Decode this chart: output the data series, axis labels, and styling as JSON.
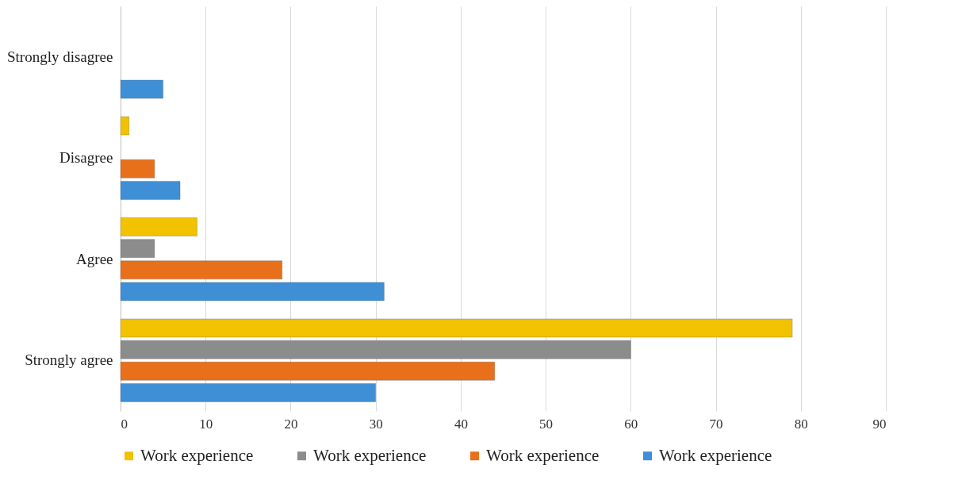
{
  "chart_data": {
    "type": "bar",
    "orientation": "horizontal",
    "categories": [
      "Strongly disagree",
      "Disagree",
      "Agree",
      "Strongly agree"
    ],
    "series": [
      {
        "name": "Work experience",
        "color": "#f2c200",
        "values": [
          null,
          1,
          9,
          79
        ]
      },
      {
        "name": "Work experience",
        "color": "#8c8c8c",
        "values": [
          null,
          null,
          4,
          60
        ]
      },
      {
        "name": "Work experience",
        "color": "#e8701a",
        "values": [
          null,
          4,
          19,
          44
        ]
      },
      {
        "name": "Work experience",
        "color": "#3f8fd6",
        "values": [
          5,
          7,
          31,
          30
        ]
      }
    ],
    "xlim": [
      0,
      90
    ],
    "xticks": [
      0,
      10,
      20,
      30,
      40,
      50,
      60,
      70,
      80,
      90
    ],
    "grid": "x",
    "legend": "bottom"
  }
}
